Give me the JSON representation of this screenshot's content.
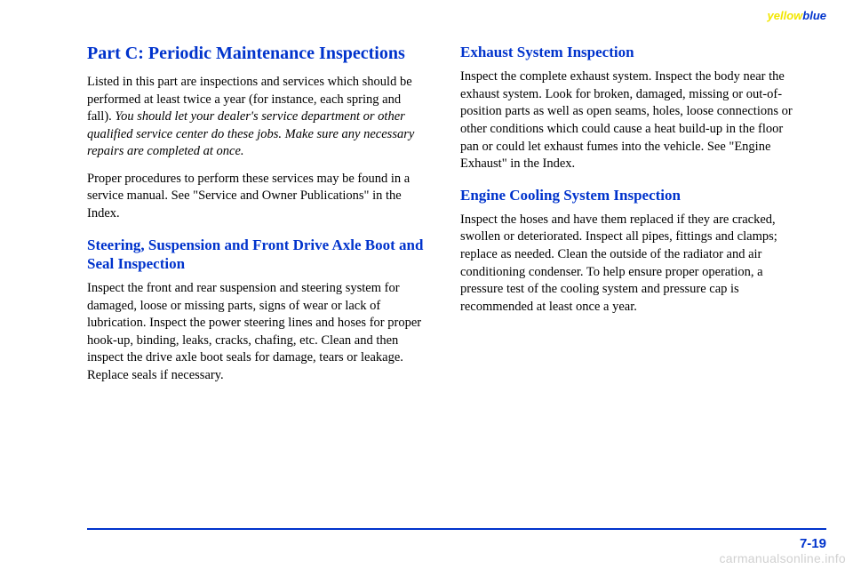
{
  "header": {
    "yellow": "yellow",
    "blue": "blue"
  },
  "pageNumber": "7-19",
  "watermark": "carmanualsonline.info",
  "left": {
    "title": "Part C: Periodic Maintenance Inspections",
    "p1_a": "Listed in this part are inspections and services which should be performed at least twice a year (for instance, each spring and fall). ",
    "p1_b": "You should let your dealer's service department or other qualified service center do these jobs. Make sure any necessary repairs are completed at once.",
    "p2": "Proper procedures to perform these services may be found in a service manual. See \"Service and Owner Publications\" in the Index.",
    "h2a": "Steering, Suspension and Front Drive Axle Boot and Seal Inspection",
    "p3": "Inspect the front and rear suspension and steering system for damaged, loose or missing parts, signs of wear or lack of lubrication. Inspect the power steering lines and hoses for proper hook-up, binding, leaks, cracks, chafing, etc. Clean and then inspect the drive axle boot seals for damage, tears or leakage. Replace seals if necessary."
  },
  "right": {
    "h2a": "Exhaust System Inspection",
    "p1": "Inspect the complete exhaust system. Inspect the body near the exhaust system. Look for broken, damaged, missing or out-of-position parts as well as open seams, holes, loose connections or other conditions which could cause a heat build-up in the floor pan or could let exhaust fumes into the vehicle. See \"Engine Exhaust\" in the Index.",
    "h2b": "Engine Cooling System Inspection",
    "p2": "Inspect the hoses and have them replaced if they are cracked, swollen or deteriorated. Inspect all pipes, fittings and clamps; replace as needed. Clean the outside of the radiator and air conditioning condenser. To help ensure proper operation, a pressure test of the cooling system and pressure cap is recommended at least once a year."
  }
}
